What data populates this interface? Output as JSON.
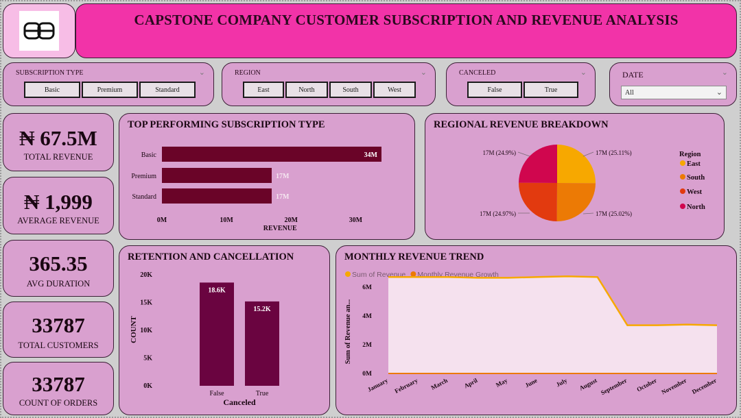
{
  "header": {
    "title": "CAPSTONE COMPANY CUSTOMER SUBSCRIPTION AND REVENUE ANALYSIS",
    "logo_icon": "bb-logo"
  },
  "slicers": {
    "subscription": {
      "title": "SUBSCRIPTION TYPE",
      "options": [
        "Basic",
        "Premium",
        "Standard"
      ]
    },
    "region": {
      "title": "REGION",
      "options": [
        "East",
        "North",
        "South",
        "West"
      ]
    },
    "canceled": {
      "title": "CANCELED",
      "options": [
        "False",
        "True"
      ]
    },
    "date": {
      "title": "DATE",
      "value": "All"
    }
  },
  "kpis": {
    "total_revenue": {
      "value": "₦ 67.5M",
      "label": "TOTAL REVENUE"
    },
    "average_revenue": {
      "value": "₦ 1,999",
      "label": "AVERAGE REVENUE"
    },
    "avg_duration": {
      "value": "365.35",
      "label": "AVG DURATION"
    },
    "total_customers": {
      "value": "33787",
      "label": "TOTAL CUSTOMERS"
    },
    "count_orders": {
      "value": "33787",
      "label": "COUNT OF ORDERS"
    }
  },
  "chart_data": [
    {
      "id": "top_subscription",
      "type": "bar",
      "title": "TOP PERFORMING SUBSCRIPTION TYPE",
      "orientation": "horizontal",
      "categories": [
        "Basic",
        "Premium",
        "Standard"
      ],
      "values": [
        34,
        17,
        17
      ],
      "data_labels": [
        "34M",
        "17M",
        "17M"
      ],
      "xlabel": "REVENUE",
      "x_ticks": [
        "0M",
        "10M",
        "20M",
        "30M"
      ],
      "xlim": [
        0,
        34
      ],
      "color": "#6a0428"
    },
    {
      "id": "regional_revenue",
      "type": "pie",
      "title": "REGIONAL REVENUE BREAKDOWN",
      "legend_title": "Region",
      "legend_position": "right",
      "slices": [
        {
          "name": "East",
          "value": 25.11,
          "label": "17M (25.11%)",
          "color": "#f7a800"
        },
        {
          "name": "South",
          "value": 25.02,
          "label": "17M (25.02%)",
          "color": "#ec7a05"
        },
        {
          "name": "West",
          "value": 24.97,
          "label": "17M (24.97%)",
          "color": "#e23a0f"
        },
        {
          "name": "North",
          "value": 24.9,
          "label": "17M (24.9%)",
          "color": "#d0064e"
        }
      ]
    },
    {
      "id": "retention",
      "type": "bar",
      "title": "RETENTION AND CANCELLATION",
      "categories": [
        "False",
        "True"
      ],
      "values": [
        18.6,
        15.2
      ],
      "data_labels": [
        "18.6K",
        "15.2K"
      ],
      "xlabel": "Canceled",
      "ylabel": "COUNT",
      "y_ticks": [
        "0K",
        "5K",
        "10K",
        "15K",
        "20K"
      ],
      "ylim": [
        0,
        20
      ],
      "color": "#6a0440"
    },
    {
      "id": "monthly_trend",
      "type": "area",
      "title": "MONTHLY REVENUE TREND",
      "ylabel": "Sum of Revenue an...",
      "legend_position": "top-left",
      "categories": [
        "January",
        "February",
        "March",
        "April",
        "May",
        "June",
        "July",
        "August",
        "September",
        "October",
        "November",
        "December"
      ],
      "y_ticks": [
        "0M",
        "2M",
        "4M",
        "6M"
      ],
      "ylim": [
        0,
        7
      ],
      "series": [
        {
          "name": "Sum of Revenue",
          "color": "#f7a800",
          "values": [
            6.7,
            6.7,
            6.7,
            6.65,
            6.65,
            6.7,
            6.75,
            6.7,
            3.35,
            3.35,
            3.4,
            3.35
          ]
        },
        {
          "name": "Monthly Revenue Growth",
          "color": "#ec7a05",
          "values": [
            0,
            0,
            0,
            0,
            0,
            0,
            0,
            0,
            0,
            0,
            0,
            0
          ]
        }
      ]
    }
  ]
}
